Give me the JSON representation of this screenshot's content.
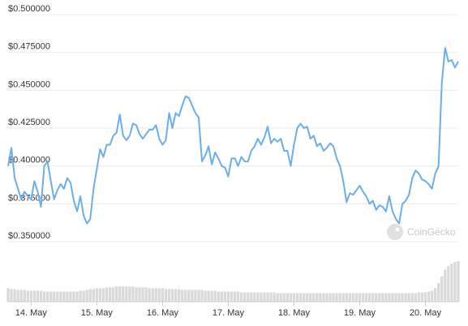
{
  "chart_data": {
    "type": "line",
    "watermark": "CoinGecko",
    "categories": [
      null,
      null,
      null,
      null,
      null,
      null,
      null,
      "14. May",
      null,
      null,
      null,
      null,
      null,
      null,
      null,
      null,
      null,
      null,
      null,
      null,
      null,
      null,
      null,
      null,
      null,
      null,
      null,
      "15. May",
      null,
      null,
      null,
      null,
      null,
      null,
      null,
      null,
      null,
      null,
      null,
      null,
      null,
      null,
      null,
      null,
      null,
      null,
      null,
      "16. May",
      null,
      null,
      null,
      null,
      null,
      null,
      null,
      null,
      null,
      null,
      null,
      null,
      null,
      null,
      null,
      null,
      null,
      null,
      null,
      "17. May",
      null,
      null,
      null,
      null,
      null,
      null,
      null,
      null,
      null,
      null,
      null,
      null,
      null,
      null,
      null,
      null,
      null,
      null,
      null,
      "18. May",
      null,
      null,
      null,
      null,
      null,
      null,
      null,
      null,
      null,
      null,
      null,
      null,
      null,
      null,
      null,
      null,
      null,
      null,
      null,
      "19. May",
      null,
      null,
      null,
      null,
      null,
      null,
      null,
      null,
      null,
      null,
      null,
      null,
      null,
      null,
      null,
      null,
      null,
      null,
      null,
      "20. May",
      null,
      null,
      null,
      null,
      null,
      null,
      null,
      null,
      null,
      null
    ],
    "series": [
      {
        "color": "#6aaeea",
        "values": [
          0.4,
          0.412,
          0.392,
          0.385,
          0.378,
          0.383,
          0.38,
          0.378,
          0.39,
          0.383,
          0.373,
          0.4,
          0.403,
          0.39,
          0.378,
          0.384,
          0.388,
          0.385,
          0.392,
          0.389,
          0.377,
          0.37,
          0.38,
          0.367,
          0.362,
          0.365,
          0.385,
          0.398,
          0.411,
          0.406,
          0.414,
          0.414,
          0.42,
          0.422,
          0.434,
          0.42,
          0.417,
          0.42,
          0.428,
          0.427,
          0.421,
          0.418,
          0.421,
          0.424,
          0.424,
          0.427,
          0.418,
          0.414,
          0.417,
          0.435,
          0.425,
          0.435,
          0.433,
          0.44,
          0.446,
          0.445,
          0.44,
          0.435,
          0.432,
          0.403,
          0.407,
          0.413,
          0.401,
          0.409,
          0.405,
          0.4,
          0.399,
          0.393,
          0.405,
          0.405,
          0.4,
          0.406,
          0.403,
          0.403,
          0.41,
          0.413,
          0.418,
          0.414,
          0.419,
          0.426,
          0.415,
          0.418,
          0.416,
          0.418,
          0.41,
          0.41,
          0.4,
          0.414,
          0.425,
          0.428,
          0.425,
          0.426,
          0.418,
          0.42,
          0.413,
          0.415,
          0.41,
          0.412,
          0.415,
          0.413,
          0.405,
          0.4,
          0.39,
          0.376,
          0.382,
          0.381,
          0.384,
          0.387,
          0.383,
          0.38,
          0.375,
          0.377,
          0.371,
          0.374,
          0.373,
          0.37,
          0.38,
          0.37,
          0.365,
          0.362,
          0.375,
          0.377,
          0.381,
          0.392,
          0.397,
          0.395,
          0.391,
          0.39,
          0.388,
          0.385,
          0.395,
          0.4,
          0.455,
          0.478,
          0.469,
          0.47,
          0.465,
          0.469
        ]
      }
    ],
    "volume": {
      "color": "#d9d9d9",
      "values": [
        16,
        15,
        15,
        14,
        14,
        14,
        13,
        13,
        13,
        13,
        13,
        12,
        12,
        12,
        12,
        12,
        12,
        12,
        12,
        12,
        12,
        12,
        13,
        13,
        14,
        15,
        15,
        16,
        16,
        16,
        17,
        17,
        17,
        18,
        18,
        18,
        18,
        18,
        18,
        17,
        17,
        17,
        17,
        16,
        16,
        16,
        16,
        16,
        15,
        15,
        15,
        15,
        15,
        14,
        14,
        14,
        14,
        14,
        14,
        14,
        13,
        13,
        13,
        13,
        12,
        12,
        12,
        12,
        12,
        12,
        12,
        11,
        11,
        11,
        11,
        11,
        11,
        11,
        11,
        11,
        11,
        11,
        10,
        10,
        10,
        10,
        10,
        10,
        10,
        10,
        10,
        10,
        10,
        10,
        10,
        10,
        10,
        10,
        10,
        10,
        10,
        10,
        10,
        10,
        10,
        10,
        10,
        10,
        10,
        10,
        10,
        10,
        10,
        10,
        10,
        10,
        10,
        10,
        10,
        10,
        10,
        10,
        10,
        10,
        10,
        11,
        11,
        11,
        12,
        13,
        16,
        22,
        30,
        38,
        42,
        45,
        47,
        48
      ]
    },
    "ylim": [
      0.35,
      0.5
    ],
    "yticks": [
      {
        "value": 0.35,
        "label": "$0.350000"
      },
      {
        "value": 0.375,
        "label": "$0.375000"
      },
      {
        "value": 0.4,
        "label": "$0.400000"
      },
      {
        "value": 0.425,
        "label": "$0.425000"
      },
      {
        "value": 0.45,
        "label": "$0.450000"
      },
      {
        "value": 0.475,
        "label": "$0.475000"
      },
      {
        "value": 0.5,
        "label": "$0.500000"
      }
    ],
    "grid": true
  }
}
